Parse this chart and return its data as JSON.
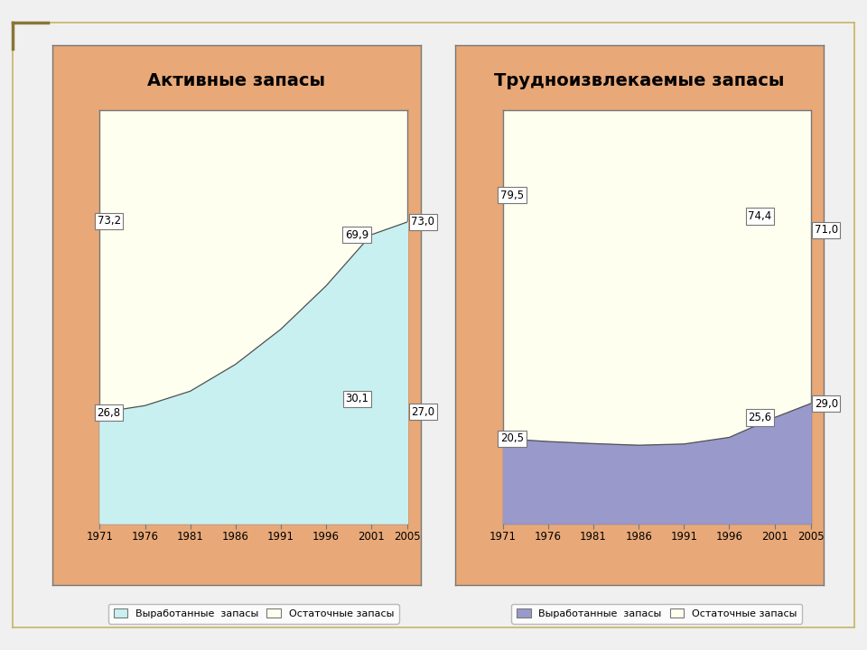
{
  "chart1_title": "Активные запасы",
  "chart2_title": "Трудноизвлекаемые запасы",
  "years": [
    1971,
    1976,
    1981,
    1986,
    1991,
    1996,
    2001,
    2005
  ],
  "chart1_produced": [
    26.8,
    28.5,
    32.0,
    38.5,
    47.0,
    57.5,
    69.9,
    73.0
  ],
  "chart2_produced": [
    20.5,
    19.8,
    19.3,
    18.9,
    19.2,
    20.8,
    25.6,
    29.0
  ],
  "chart_bg": "#fffff0",
  "chart1_fill_color": "#c8f0f0",
  "chart2_fill_color": "#9999cc",
  "panel_bg": "#e8a878",
  "fig_bg": "#f0f0f0",
  "border_color_outer": "#c8b464",
  "legend_label1": "Выработанные  запасы",
  "legend_label2": "Остаточные запасы",
  "tick_years": [
    1971,
    1976,
    1981,
    1986,
    1991,
    1996,
    2001,
    2005
  ],
  "chart1_labels": {
    "1971_produced": "26,8",
    "1971_remaining": "73,2",
    "2001_produced": "69,9",
    "2001_remaining": "30,1",
    "2005_produced": "73,0",
    "2005_remaining": "27,0"
  },
  "chart2_labels": {
    "1971_produced": "20,5",
    "1971_remaining": "79,5",
    "2001_produced": "25,6",
    "2001_remaining": "74,4",
    "2005_produced": "29,0",
    "2005_remaining": "71,0"
  }
}
